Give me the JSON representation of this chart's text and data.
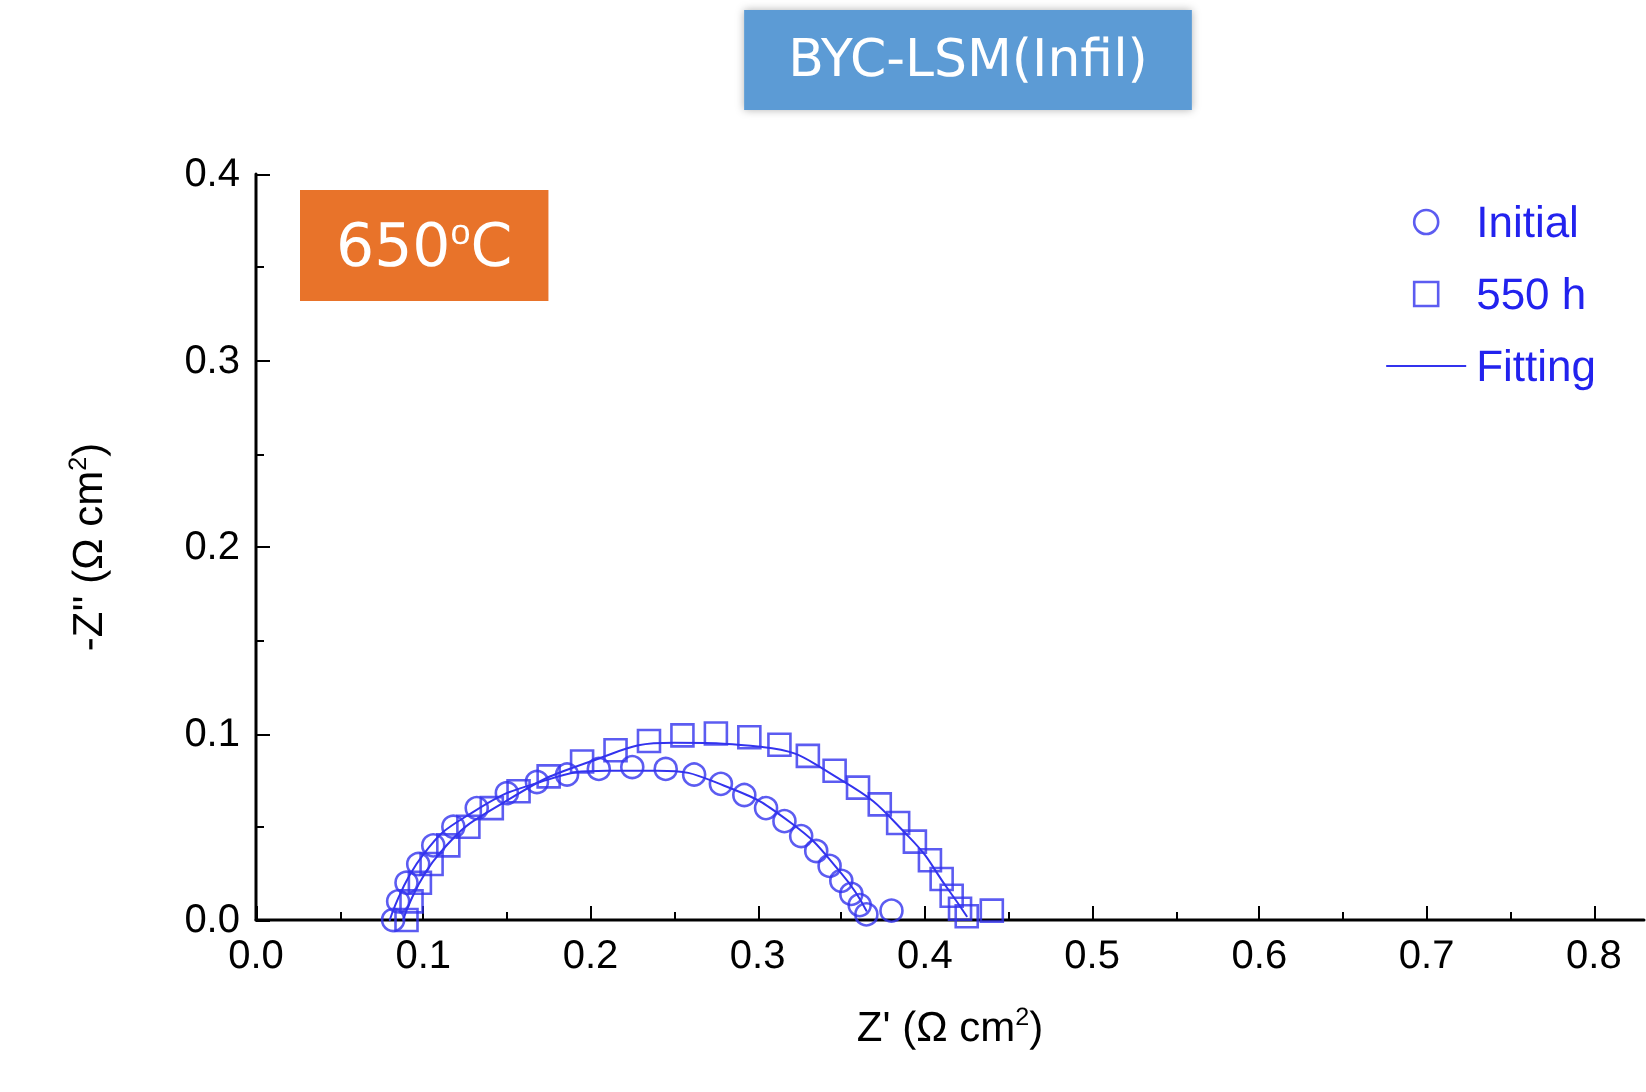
{
  "chart_data": {
    "type": "scatter",
    "title": "BYC-LSM(Infil)",
    "xlabel": "Z' (Ω cm$^{2}$)",
    "ylabel": "-Z'' (Ω cm$^{2}$)",
    "annotations": [
      "650$^{o}$C"
    ],
    "xlim": [
      0,
      0.83
    ],
    "xticks": [
      {
        "value": 0,
        "label": "0.0"
      },
      0.1,
      0.2,
      0.3,
      0.4,
      0.5,
      0.6,
      0.7,
      0.8
    ],
    "ylim": [
      0,
      0.4
    ],
    "yticks": [
      {
        "value": 0,
        "label": "0.0"
      },
      0.1,
      0.2,
      0.3,
      0.4
    ],
    "grid": false,
    "legend": "top right",
    "series": [
      {
        "name": "Initial",
        "marker": "circle",
        "color": "#3333ee",
        "x": [
          0.082,
          0.085,
          0.09,
          0.097,
          0.106,
          0.118,
          0.132,
          0.15,
          0.168,
          0.186,
          0.205,
          0.225,
          0.245,
          0.262,
          0.278,
          0.292,
          0.305,
          0.316,
          0.326,
          0.335,
          0.343,
          0.35,
          0.356,
          0.361,
          0.365,
          0.38
        ],
        "values": [
          0.0,
          0.01,
          0.02,
          0.03,
          0.04,
          0.05,
          0.06,
          0.068,
          0.074,
          0.078,
          0.081,
          0.082,
          0.081,
          0.078,
          0.073,
          0.067,
          0.06,
          0.053,
          0.045,
          0.037,
          0.029,
          0.021,
          0.014,
          0.008,
          0.003,
          0.005
        ]
      },
      {
        "name": "550 h",
        "marker": "square",
        "color": "#3333ee",
        "x": [
          0.09,
          0.093,
          0.098,
          0.105,
          0.115,
          0.127,
          0.141,
          0.157,
          0.175,
          0.195,
          0.215,
          0.235,
          0.255,
          0.275,
          0.295,
          0.313,
          0.33,
          0.346,
          0.36,
          0.373,
          0.384,
          0.394,
          0.403,
          0.41,
          0.416,
          0.421,
          0.425,
          0.44
        ],
        "values": [
          0.0,
          0.01,
          0.02,
          0.03,
          0.04,
          0.05,
          0.06,
          0.069,
          0.077,
          0.085,
          0.091,
          0.096,
          0.099,
          0.1,
          0.098,
          0.094,
          0.088,
          0.08,
          0.071,
          0.062,
          0.052,
          0.042,
          0.032,
          0.022,
          0.013,
          0.006,
          0.002,
          0.005
        ]
      },
      {
        "name": "Fitting",
        "type": "line",
        "marker": "none",
        "line_style": "solid",
        "color": "#3333ee",
        "x": [
          0.08,
          0.1,
          0.13,
          0.17,
          0.21,
          0.24,
          0.28,
          0.32,
          0.35,
          0.365
        ],
        "values": [
          0.0,
          0.035,
          0.058,
          0.074,
          0.08,
          0.08,
          0.072,
          0.052,
          0.025,
          0.005
        ]
      },
      {
        "type": "line",
        "marker": "none",
        "line_style": "solid",
        "color": "#3333ee",
        "x": [
          0.088,
          0.11,
          0.15,
          0.2,
          0.25,
          0.3,
          0.35,
          0.39,
          0.415,
          0.425
        ],
        "values": [
          0.0,
          0.036,
          0.064,
          0.085,
          0.095,
          0.093,
          0.075,
          0.045,
          0.015,
          0.002
        ]
      }
    ]
  }
}
